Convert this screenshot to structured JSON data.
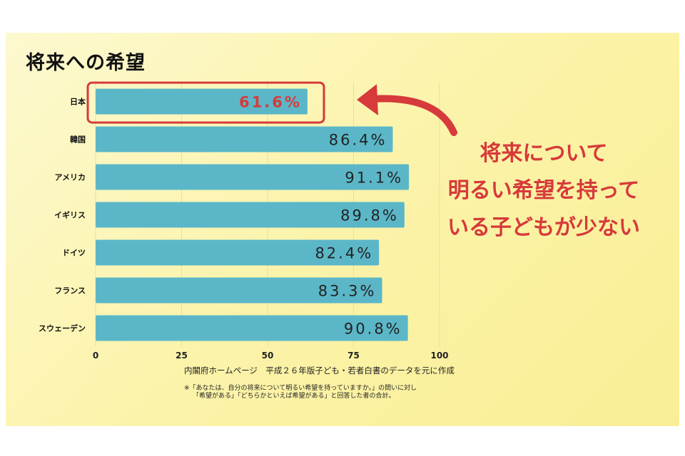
{
  "title": "将来への希望",
  "callout": [
    "将来について",
    "明るい希望を持って",
    "いる子どもが少ない"
  ],
  "source": "内閣府ホームページ　平成２６年版子ども・若者白書のデータを元に作成",
  "note": [
    "※「あなたは、自分の将来について明るい希望を持っていますか。」の問いに対し",
    "「希望がある」「どちらかといえば希望がある」と回答した者の合計。"
  ],
  "colors": {
    "bar": "#5bb7c8",
    "accent": "#d63a3a",
    "grid": "#e6dfa8"
  },
  "chart_data": {
    "type": "bar",
    "orientation": "horizontal",
    "categories": [
      "日本",
      "韓国",
      "アメリカ",
      "イギリス",
      "ドイツ",
      "フランス",
      "スウェーデン"
    ],
    "values": [
      61.6,
      86.4,
      91.1,
      89.8,
      82.4,
      83.3,
      90.8
    ],
    "value_labels": [
      "61.6%",
      "86.4%",
      "91.1%",
      "89.8%",
      "82.4%",
      "83.3%",
      "90.8%"
    ],
    "xlim": [
      0,
      100
    ],
    "xticks": [
      "0",
      "25",
      "50",
      "75",
      "100"
    ],
    "highlight_index": 0
  }
}
